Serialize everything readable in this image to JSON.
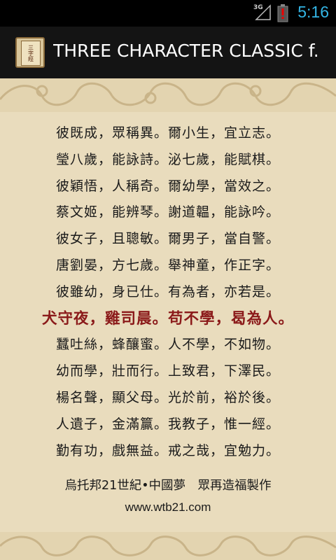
{
  "status_bar": {
    "time": "5:16",
    "network": "3G",
    "icons": [
      "signal-icon",
      "battery-alert-icon"
    ]
  },
  "action_bar": {
    "title": "THREE CHARACTER CLASSIC f.",
    "app_icon_text": "三字經"
  },
  "verses": [
    "彼既成，眾稱異。爾小生，宜立志。",
    "瑩八歲，能詠詩。泌七歲，能賦棋。",
    "彼穎悟，人稱奇。爾幼學，當效之。",
    "蔡文姬，能辨琴。謝道韞，能詠吟。",
    "彼女子，且聰敏。爾男子，當自警。",
    "唐劉晏，方七歲。舉神童，作正字。",
    "彼雖幼，身已仕。有為者，亦若是。",
    "犬守夜，雞司晨。苟不學，曷為人。",
    "蠶吐絲，蜂釀蜜。人不學，不如物。",
    "幼而學，壯而行。上致君，下澤民。",
    "楊名聲，顯父母。光於前，裕於後。",
    "人遺子，金滿籯。我教子，惟一經。",
    "勤有功，戲無益。戒之哉，宜勉力。"
  ],
  "highlighted_verse_index": 7,
  "footer": {
    "credit": "烏托邦21世紀•中國夢　眾再造福製作",
    "url": "www.wtb21.com"
  },
  "colors": {
    "highlight": "#8b1a1a",
    "status_accent": "#33b5e5",
    "background": "#e9dcbd"
  }
}
